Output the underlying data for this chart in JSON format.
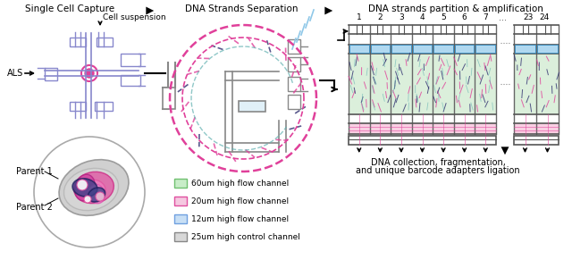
{
  "bg_color": "#ffffff",
  "stage1_title": "Single Cell Capture",
  "stage2_title": "DNA Strands Separation",
  "stage3_title": "DNA strands partition & amplification",
  "cell_suspension": "Cell suspension",
  "als_label": "ALS",
  "parent1_label": "Parent 1",
  "parent2_label": "Parent 2",
  "legend_items": [
    {
      "color": "#c8edc8",
      "ec": "#70c070",
      "label": "60um high flow channel"
    },
    {
      "color": "#f5c8e0",
      "ec": "#e050a0",
      "label": "20um high flow channel"
    },
    {
      "color": "#c8dff5",
      "ec": "#70a0e0",
      "label": "12um high flow channel"
    },
    {
      "color": "#d8d8d8",
      "ec": "#888888",
      "label": "25um high control channel"
    }
  ],
  "bottom_text1": "DNA collection, fragmentation,",
  "bottom_text2": "and unique barcode adapters ligation",
  "chip_color": "#8888cc",
  "pink_color": "#e0409a",
  "dark_pink": "#cc2080",
  "light_pink": "#f4a0c8",
  "light_blue": "#90c8e8",
  "teal": "#60b0b0",
  "light_green": "#b0ddb0",
  "gray_color": "#888888",
  "dark_gray": "#555555",
  "dark_navy": "#303070"
}
